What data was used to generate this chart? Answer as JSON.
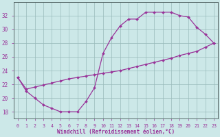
{
  "xlabel": "Windchill (Refroidissement éolien,°C)",
  "line_color": "#993399",
  "bg_color": "#cce8e8",
  "grid_color": "#99bbbb",
  "ylim_min": 17,
  "ylim_max": 34,
  "xlim_min": -0.5,
  "xlim_max": 23.5,
  "yticks": [
    18,
    20,
    22,
    24,
    26,
    28,
    30,
    32
  ],
  "xticks": [
    0,
    1,
    2,
    3,
    4,
    5,
    6,
    7,
    8,
    9,
    10,
    11,
    12,
    13,
    14,
    15,
    16,
    17,
    18,
    19,
    20,
    21,
    22,
    23
  ],
  "x": [
    0,
    1,
    2,
    3,
    4,
    5,
    6,
    7,
    8,
    9,
    10,
    11,
    12,
    13,
    14,
    15,
    16,
    17,
    18,
    19,
    20,
    21,
    22,
    23
  ],
  "y_arch": [
    23,
    21,
    20,
    19,
    18.5,
    18,
    18,
    18,
    19.5,
    21.5,
    26.5,
    28.8,
    30.5,
    31.5,
    31.5,
    32.5,
    32.5,
    32.5,
    32.5,
    32.0,
    31.8,
    30.3,
    29.3,
    28.0
  ],
  "y_diag": [
    23,
    21.3,
    21.6,
    21.9,
    22.2,
    22.5,
    22.8,
    23.0,
    23.2,
    23.4,
    23.6,
    23.8,
    24.0,
    24.3,
    24.6,
    24.9,
    25.2,
    25.5,
    25.8,
    26.2,
    26.5,
    26.8,
    27.4,
    28.0
  ]
}
